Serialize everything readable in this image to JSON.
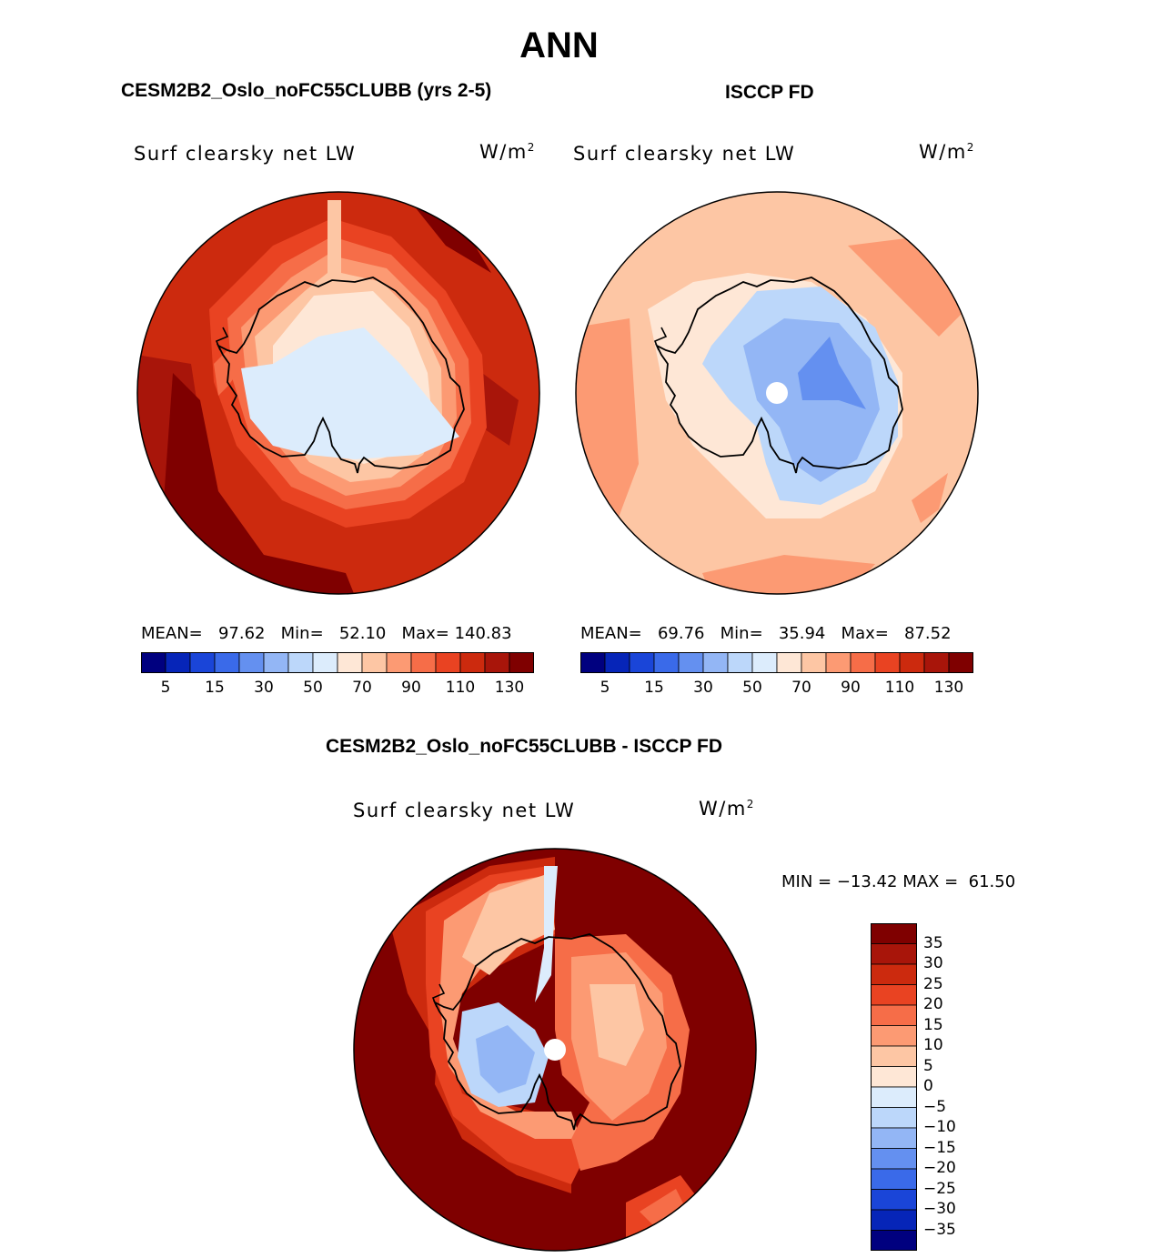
{
  "page": {
    "title": "ANN",
    "units_base": "W/m",
    "units_exp": "2"
  },
  "colors": {
    "scale": [
      "#00007f",
      "#0625b8",
      "#1a45d8",
      "#3a6ae9",
      "#6490f0",
      "#93b6f5",
      "#bcd7fa",
      "#dcecfc",
      "#fee7d6",
      "#fdc6a4",
      "#fc9a73",
      "#f66d48",
      "#e94322",
      "#cc2a0e",
      "#a8150a",
      "#7f0000"
    ],
    "coast": "#000000"
  },
  "panels": [
    {
      "id": "model",
      "title": "CESM2B2_Oslo_noFC55CLUBB (yrs 2-5)",
      "variable": "Surf clearsky net LW",
      "mean_label": "MEAN=",
      "mean_value": "97.62",
      "min_label": "Min=",
      "min_value": "52.10",
      "max_label": "Max=",
      "max_value": "140.83",
      "colorbar_levels": [
        "5",
        "10",
        "15",
        "20",
        "30",
        "40",
        "50",
        "60",
        "70",
        "80",
        "90",
        "100",
        "110",
        "120",
        "130"
      ],
      "colorbar_tick_labels": [
        "5",
        "15",
        "30",
        "50",
        "70",
        "90",
        "110",
        "130"
      ]
    },
    {
      "id": "obs",
      "title": "ISCCP FD",
      "variable": "Surf clearsky net LW",
      "mean_label": "MEAN=",
      "mean_value": "69.76",
      "min_label": "Min=",
      "min_value": "35.94",
      "max_label": "Max=",
      "max_value": "87.52",
      "colorbar_levels": [
        "5",
        "10",
        "15",
        "20",
        "30",
        "40",
        "50",
        "60",
        "70",
        "80",
        "90",
        "100",
        "110",
        "120",
        "130"
      ],
      "colorbar_tick_labels": [
        "5",
        "15",
        "30",
        "50",
        "70",
        "90",
        "110",
        "130"
      ]
    }
  ],
  "difference": {
    "title": "CESM2B2_Oslo_noFC55CLUBB - ISCCP FD",
    "variable": "Surf clearsky net LW",
    "min_label": "MIN =",
    "min_value": "−13.42",
    "max_label": "MAX =",
    "max_value": "61.50",
    "colorbar_levels": [
      "35",
      "30",
      "25",
      "20",
      "15",
      "10",
      "5",
      "0",
      "−5",
      "−10",
      "−15",
      "−20",
      "−25",
      "−30",
      "−35"
    ]
  }
}
